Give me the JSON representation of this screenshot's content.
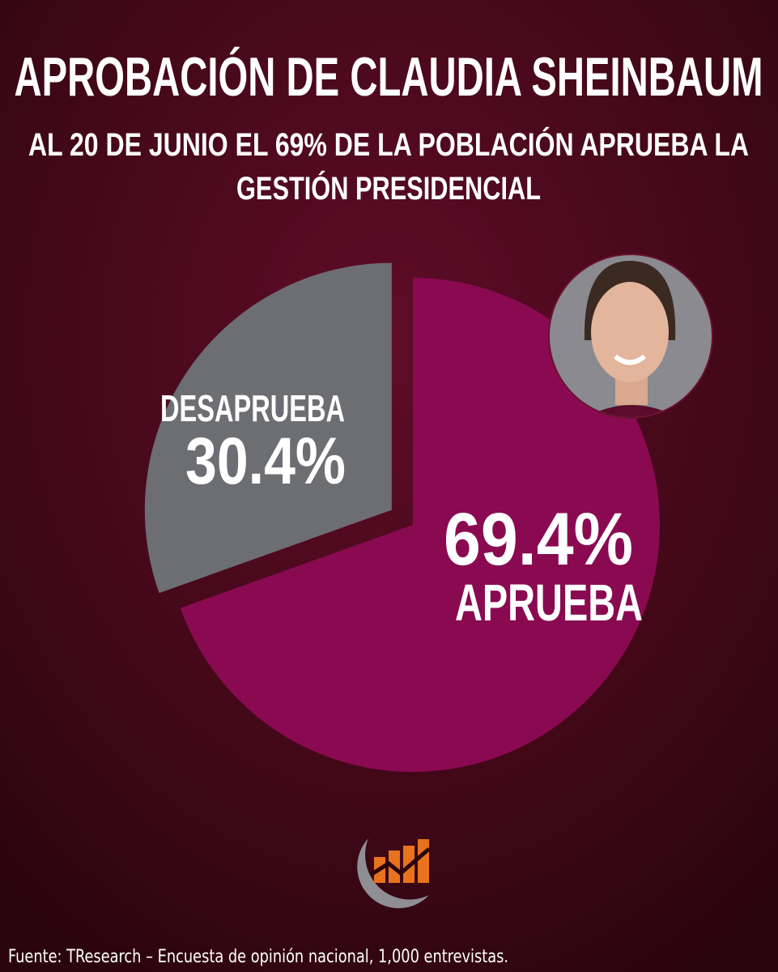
{
  "chart_data": {
    "type": "pie",
    "title": "APROBACIÓN DE CLAUDIA SHEINBAUM",
    "subtitle": [
      "AL 20 DE JUNIO EL 69% DE LA POBLACIÓN APRUEBA LA",
      "GESTIÓN PRESIDENCIAL"
    ],
    "categories": [
      "APRUEBA",
      "DESAPRUEBA"
    ],
    "values": [
      69.4,
      30.4
    ],
    "value_labels": [
      "69.4%",
      "30.4%"
    ],
    "colors": [
      "#8a0a52",
      "#6d6d74"
    ],
    "source": "Fuente: TResearch – Encuesta de opinión nacional, 1,000 entrevistas."
  }
}
